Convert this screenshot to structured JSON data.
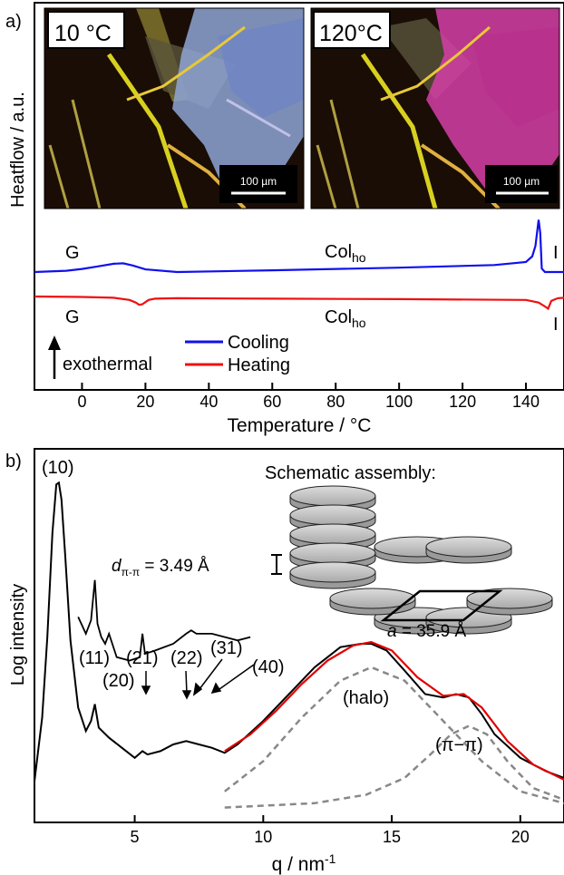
{
  "chart_data": [
    {
      "panel_label": "a)",
      "type": "line",
      "xlabel": "Temperature / °C",
      "ylabel": "Heatflow / a.u.",
      "xlim": [
        -15,
        152
      ],
      "xticks": [
        0,
        20,
        40,
        60,
        80,
        100,
        120,
        140
      ],
      "series": [
        {
          "name": "Cooling",
          "color": "#1010ee",
          "x": [
            -15,
            -5,
            0,
            5,
            10,
            13,
            16,
            20,
            30,
            60,
            100,
            130,
            140,
            142,
            143,
            144,
            144.5,
            145,
            146,
            147,
            152
          ],
          "y": [
            0.0,
            0.3,
            0.7,
            1.3,
            1.9,
            2.0,
            1.5,
            0.6,
            0.0,
            0.4,
            1.0,
            1.6,
            2.3,
            3.6,
            6.0,
            12.0,
            9.0,
            0.8,
            0.0,
            0.0,
            0.0
          ]
        },
        {
          "name": "Heating",
          "color": "#ee1010",
          "x": [
            -15,
            0,
            10,
            15,
            17,
            18,
            19,
            20,
            21,
            23,
            30,
            60,
            100,
            140,
            144,
            146,
            147,
            148,
            150,
            152
          ],
          "y": [
            0.0,
            -0.1,
            -0.3,
            -0.8,
            -1.4,
            -1.9,
            -1.8,
            -1.3,
            -0.8,
            -0.5,
            -0.4,
            -0.5,
            -0.6,
            -0.8,
            -1.4,
            -2.3,
            -2.8,
            -1.0,
            -0.4,
            -0.3
          ]
        }
      ],
      "annotations": {
        "phase_g": "G",
        "phase_col": "Col",
        "phase_col_sub": "ho",
        "phase_i": "I",
        "exothermal": "exothermal"
      },
      "insets": [
        {
          "label": "10 °C",
          "scalebar": "100 µm",
          "crystal_color": "#8fa6d6"
        },
        {
          "label": "120°C",
          "scalebar": "100 µm",
          "crystal_color": "#d63fa8"
        }
      ],
      "legend_position": "bottom-left"
    },
    {
      "panel_label": "b)",
      "type": "line",
      "xlabel": "q / nm",
      "xlabel_sup": "-1",
      "ylabel": "Log intensity",
      "xlim": [
        1.1,
        21.7
      ],
      "xticks": [
        5,
        10,
        15,
        20
      ],
      "series": [
        {
          "role": "measured",
          "color": "#000000",
          "x": [
            1.1,
            1.4,
            1.6,
            1.8,
            1.95,
            2.05,
            2.15,
            2.3,
            2.5,
            2.8,
            3.1,
            3.3,
            3.45,
            3.6,
            4.0,
            4.5,
            5.0,
            5.3,
            5.5,
            6.0,
            6.5,
            7.0,
            7.5,
            8.0,
            8.5,
            9.0,
            10.0,
            11.0,
            12.0,
            13.0,
            13.8,
            14.2,
            14.8,
            15.5,
            16.3,
            17.0,
            17.5,
            18.0,
            18.5,
            19.0,
            20.0,
            21.0,
            21.7
          ],
          "y": [
            0.9,
            2.8,
            5.2,
            8.3,
            9.75,
            9.8,
            9.3,
            7.6,
            5.1,
            3.1,
            2.4,
            2.7,
            3.2,
            2.5,
            2.2,
            1.9,
            1.6,
            1.8,
            1.7,
            1.8,
            2.0,
            2.1,
            2.0,
            1.9,
            1.75,
            2.0,
            2.7,
            3.5,
            4.3,
            4.9,
            5.0,
            5.0,
            4.8,
            4.2,
            3.5,
            3.4,
            3.5,
            3.4,
            2.9,
            2.3,
            1.6,
            1.2,
            1.0
          ]
        },
        {
          "role": "inset_zoom",
          "color": "#000000",
          "x": [
            2.8,
            3.1,
            3.3,
            3.45,
            3.55,
            3.7,
            3.85,
            4.0,
            4.3,
            4.8,
            5.2,
            5.3,
            5.4,
            5.8,
            6.5,
            7.0,
            7.2,
            7.4,
            8.0,
            9.0,
            9.5
          ],
          "y": [
            5.8,
            5.3,
            5.7,
            6.9,
            5.6,
            5.2,
            5.0,
            5.3,
            4.6,
            4.5,
            4.6,
            5.3,
            4.7,
            4.8,
            5.0,
            5.3,
            5.4,
            5.3,
            5.3,
            5.1,
            5.2
          ]
        },
        {
          "role": "fit",
          "color": "#e00000",
          "x": [
            8.5,
            9.5,
            10.5,
            11.5,
            12.5,
            13.5,
            14.2,
            15.0,
            16.0,
            17.0,
            17.8,
            18.5,
            19.5,
            20.5,
            21.7
          ],
          "y": [
            1.8,
            2.3,
            3.0,
            3.8,
            4.5,
            4.95,
            5.05,
            4.8,
            4.0,
            3.45,
            3.5,
            3.1,
            2.1,
            1.4,
            0.95
          ]
        },
        {
          "role": "halo_component",
          "color": "#888888",
          "x": [
            8.5,
            10.0,
            11.5,
            13.0,
            14.2,
            15.5,
            17.0,
            18.5,
            20.0,
            21.7
          ],
          "y": [
            0.6,
            1.5,
            2.8,
            3.9,
            4.3,
            3.9,
            2.7,
            1.5,
            0.6,
            0.25
          ]
        },
        {
          "role": "pi_pi_component",
          "color": "#888888",
          "x": [
            8.5,
            12.0,
            14.0,
            15.5,
            16.5,
            17.3,
            18.0,
            18.7,
            19.5,
            20.5,
            21.7
          ],
          "y": [
            0.12,
            0.25,
            0.5,
            1.0,
            1.7,
            2.3,
            2.55,
            2.3,
            1.5,
            0.7,
            0.35
          ]
        }
      ],
      "peak_labels": [
        "(10)",
        "(11)",
        "(20)",
        "(21)",
        "(22)",
        "(31)",
        "(40)",
        "(halo)",
        "(π−π)"
      ],
      "schematic": {
        "title": "Schematic assembly:",
        "d_label": "d",
        "d_sub": "π-π",
        "d_value": " = 3.49 Å",
        "a_label": "a",
        "a_value": " = 35.9 Å"
      }
    }
  ]
}
